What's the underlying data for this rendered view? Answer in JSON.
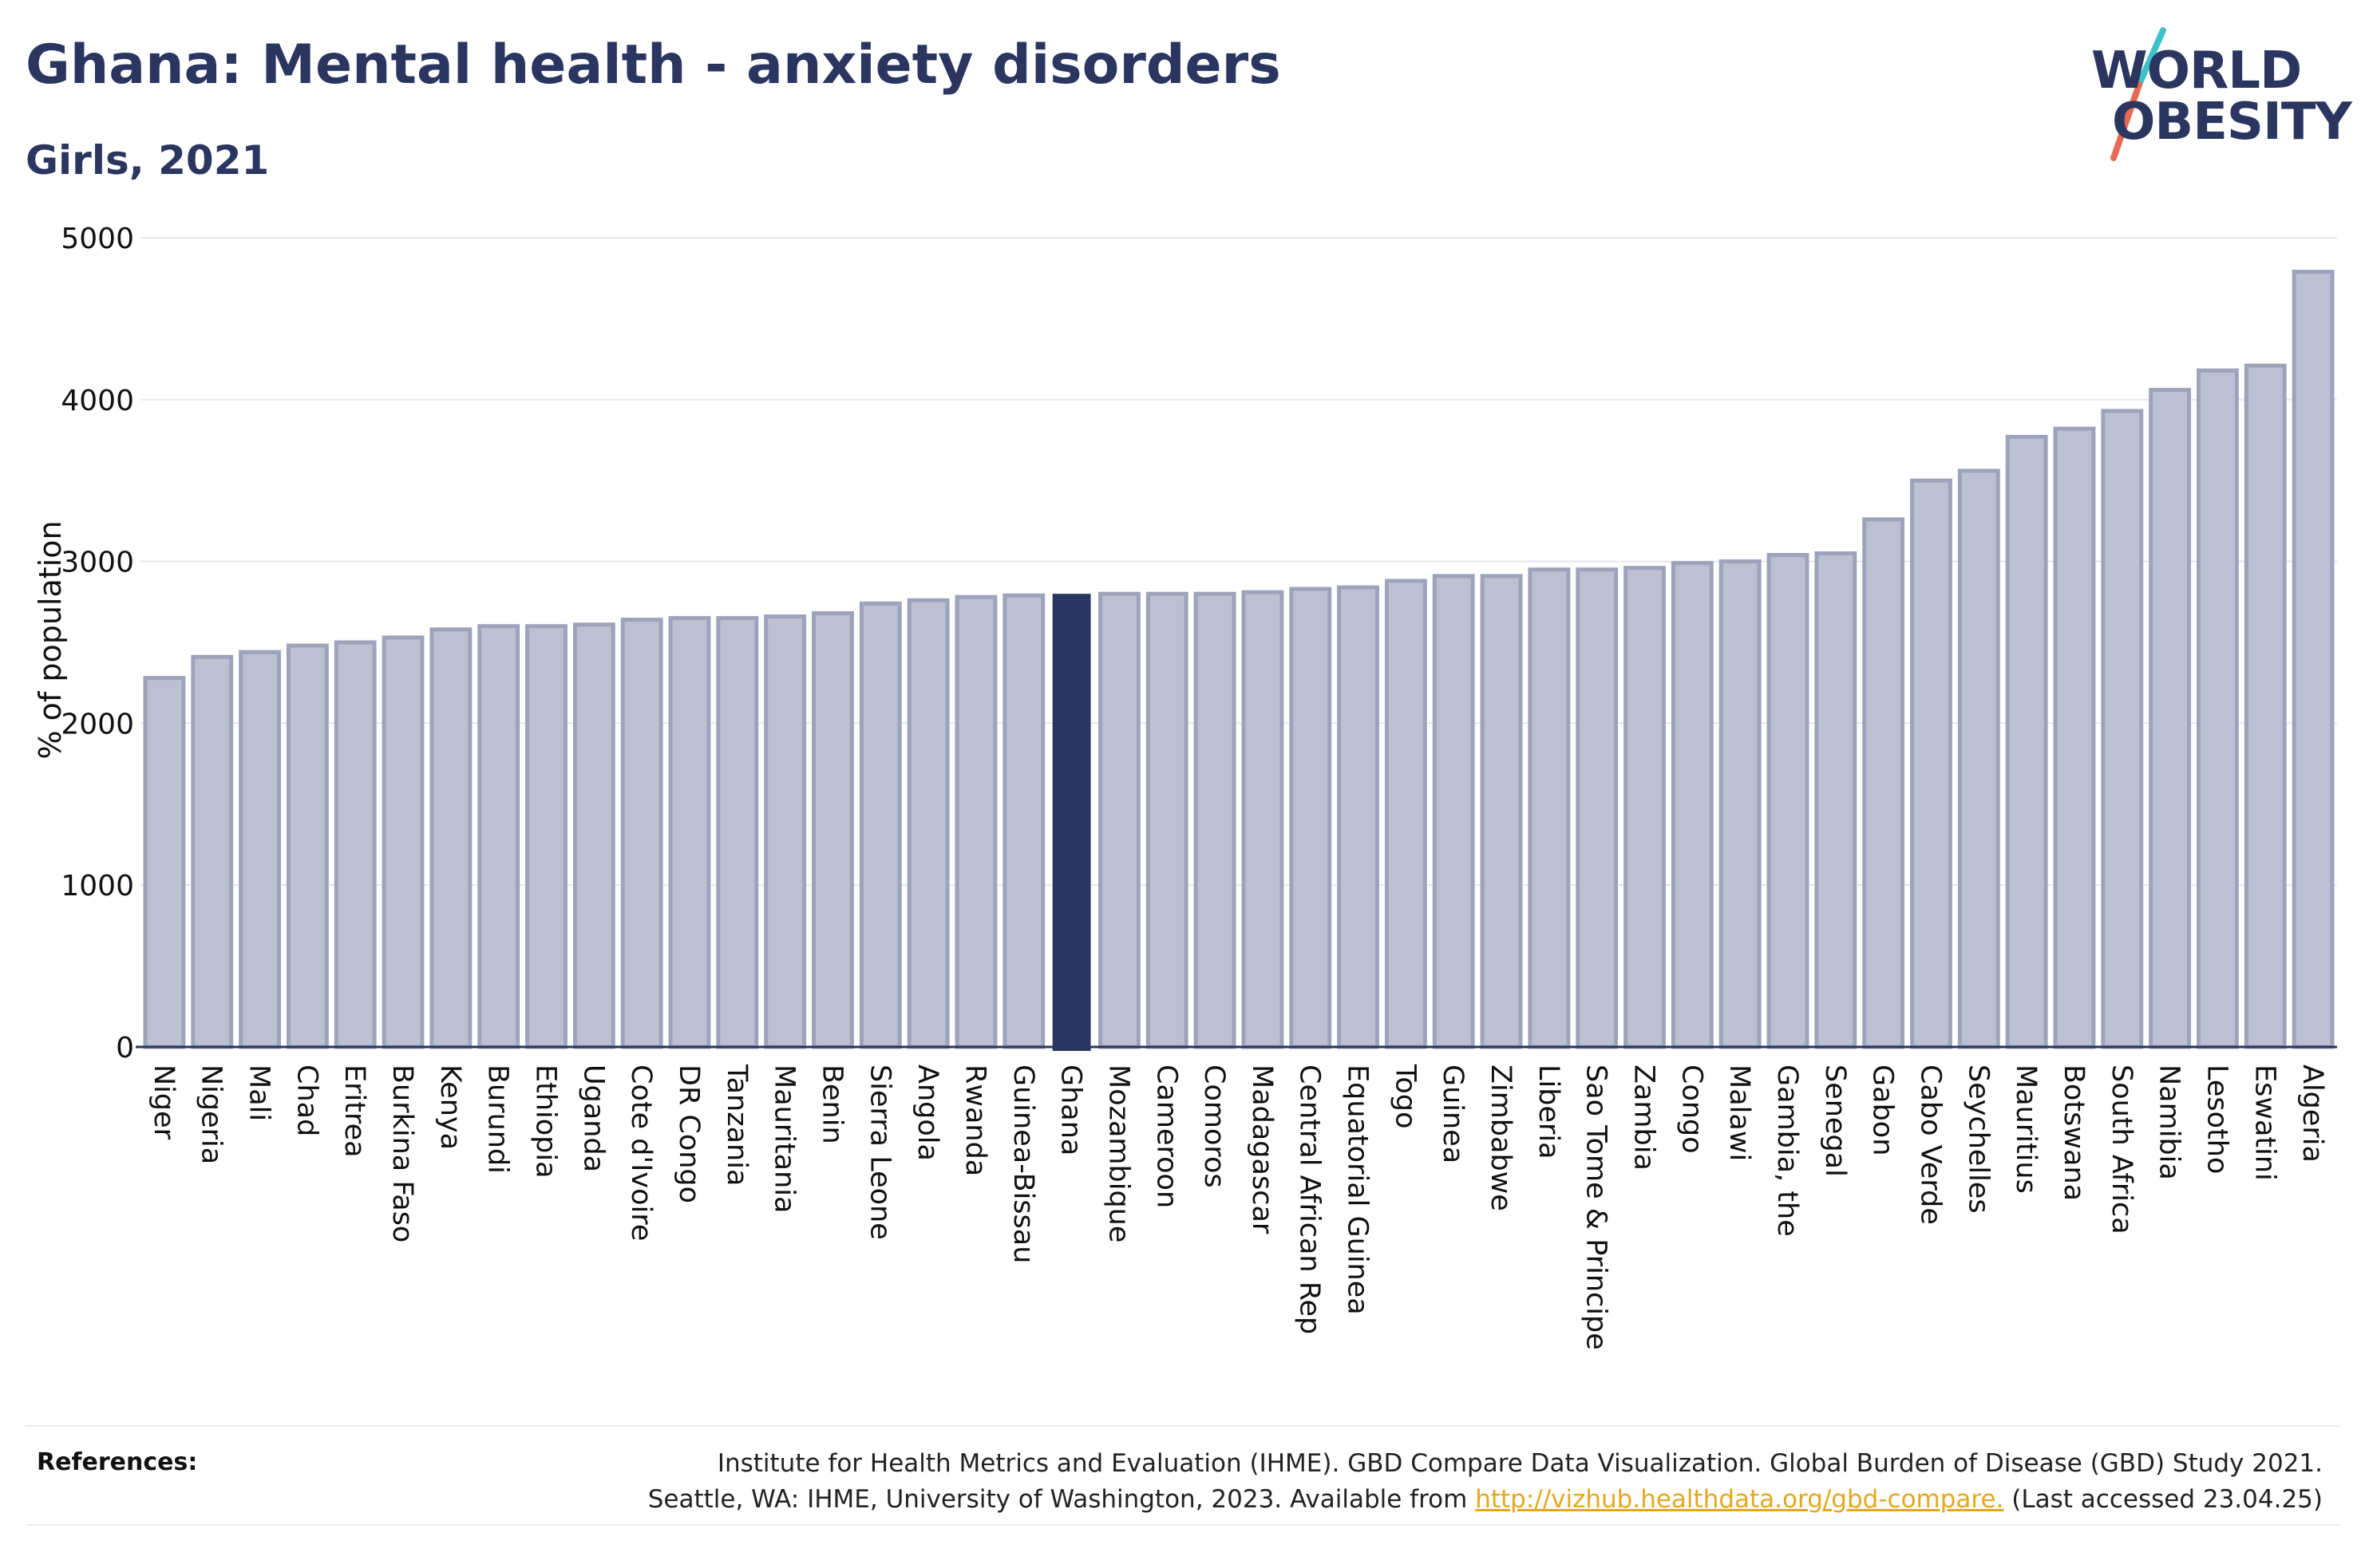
{
  "title": "Ghana: Mental health - anxiety disorders",
  "subtitle": "Girls, 2021",
  "logo": {
    "line1": "WORLD",
    "line2": "OBESITY",
    "slash_colors": [
      "#3ec1c9",
      "#e56a54"
    ]
  },
  "colors": {
    "bar": "#bcc0d0",
    "bar_stroke": "#9da3bb",
    "highlight": "#2a3560",
    "gridline": "#e6e7eb",
    "axis": "#2a3560"
  },
  "chart_data": {
    "type": "bar",
    "title": "Ghana: Mental health - anxiety disorders",
    "subtitle": "Girls, 2021",
    "ylabel": "% of population",
    "xlabel": "",
    "ylim": [
      0,
      5000
    ],
    "yticks": [
      0,
      1000,
      2000,
      3000,
      4000,
      5000
    ],
    "grid": true,
    "highlight": "Ghana",
    "categories": [
      "Niger",
      "Nigeria",
      "Mali",
      "Chad",
      "Eritrea",
      "Burkina Faso",
      "Kenya",
      "Burundi",
      "Ethiopia",
      "Uganda",
      "Cote d'Ivoire",
      "DR Congo",
      "Tanzania",
      "Mauritania",
      "Benin",
      "Sierra Leone",
      "Angola",
      "Rwanda",
      "Guinea-Bissau",
      "Ghana",
      "Mozambique",
      "Cameroon",
      "Comoros",
      "Madagascar",
      "Central African Rep",
      "Equatorial Guinea",
      "Togo",
      "Guinea",
      "Zimbabwe",
      "Liberia",
      "Sao Tome & Principe",
      "Zambia",
      "Congo",
      "Malawi",
      "Gambia, the",
      "Senegal",
      "Gabon",
      "Cabo Verde",
      "Seychelles",
      "Mauritius",
      "Botswana",
      "South Africa",
      "Namibia",
      "Lesotho",
      "Eswatini",
      "Algeria"
    ],
    "values": [
      2280,
      2410,
      2440,
      2480,
      2500,
      2530,
      2580,
      2600,
      2600,
      2610,
      2640,
      2650,
      2650,
      2660,
      2680,
      2740,
      2760,
      2780,
      2790,
      2800,
      2800,
      2800,
      2800,
      2810,
      2830,
      2840,
      2880,
      2910,
      2910,
      2950,
      2950,
      2960,
      2990,
      3000,
      3040,
      3050,
      3260,
      3500,
      3560,
      3770,
      3820,
      3930,
      4060,
      4180,
      4210,
      4790
    ]
  },
  "references": {
    "label": "References:",
    "line1": "Institute for Health Metrics and Evaluation (IHME). GBD Compare Data Visualization. Global Burden of Disease (GBD) Study 2021.",
    "line2_before": "Seattle, WA: IHME, University of Washington, 2023. Available from ",
    "link": "http://vizhub.healthdata.org/gbd-compare.",
    "line2_after": " (Last accessed 23.04.25)"
  }
}
